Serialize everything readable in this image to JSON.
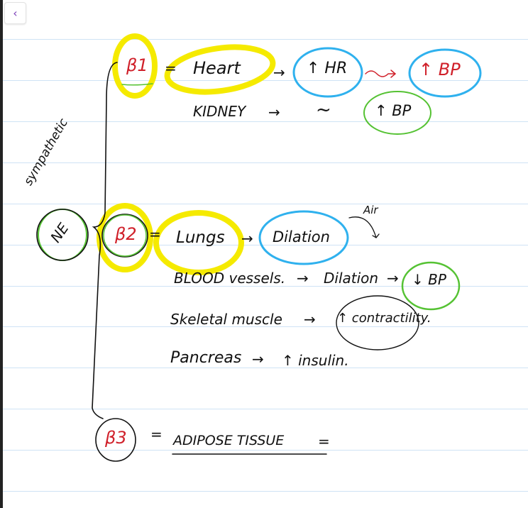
{
  "toolbar": {
    "back_icon": "chevron-left-icon",
    "back_label": "‹"
  },
  "note": {
    "vertical_label": "sympathetic",
    "root": "NE",
    "beta1": {
      "label": "β1",
      "eq": "=",
      "organ": "Heart",
      "arrow": "→",
      "effect": "↑ HR",
      "arrow2": "⇝",
      "result": "↑ BP",
      "row2": {
        "organ": "KIDNEY",
        "arrow": "→",
        "tilde": "~",
        "result": "↑ BP"
      }
    },
    "beta2": {
      "label": "β2",
      "eq": "=",
      "organ": "Lungs",
      "arrow": "→",
      "effect": "Dilation",
      "note": "Air",
      "rows": [
        {
          "organ": "BLOOD vessels.",
          "arrow": "→",
          "effect": "Dilation",
          "arrow2": "→",
          "result": "↓ BP"
        },
        {
          "organ": "Skeletal muscle",
          "arrow": "→",
          "effect": "↑ contractility."
        },
        {
          "organ": "Pancreas",
          "arrow": "→",
          "effect": "↑ insulin."
        }
      ]
    },
    "beta3": {
      "label": "β3",
      "eq": "=",
      "organ": "ADIPOSE TISSUE",
      "trail": "="
    }
  },
  "colors": {
    "highlight": "#f5ea00",
    "blue": "#2fb1ee",
    "green": "#55c233",
    "red": "#d0202a",
    "rule": "#cfe3f5"
  }
}
